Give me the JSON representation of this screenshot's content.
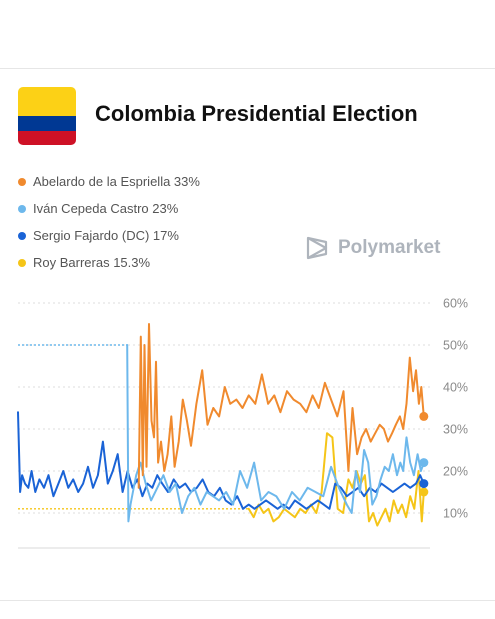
{
  "header": {
    "title": "Colombia Presidential Election",
    "brand": "Polymarket",
    "flag_colors": [
      "#FCD116",
      "#003893",
      "#CE1126"
    ]
  },
  "legend": [
    {
      "label": "Abelardo de la Espriella 33%",
      "color": "#f08a2e"
    },
    {
      "label": "Iván Cepeda Castro 23%",
      "color": "#6db8ec"
    },
    {
      "label": "Sergio Fajardo (DC) 17%",
      "color": "#1a63d6"
    },
    {
      "label": "Roy Barreras 15.3%",
      "color": "#f5c518"
    }
  ],
  "chart_data": {
    "type": "line",
    "title": "",
    "xlabel": "",
    "ylabel": "",
    "ylim": [
      5,
      60
    ],
    "y_ticks": [
      10,
      20,
      30,
      40,
      50,
      60
    ],
    "y_tick_labels": [
      "10%",
      "20%",
      "30%",
      "40%",
      "50%",
      "60%"
    ],
    "x_range": [
      0,
      100
    ],
    "grid": true,
    "y_axis_side": "right",
    "series": [
      {
        "name": "Abelardo de la Espriella",
        "color": "#f08a2e",
        "x": [
          29.3,
          29.8,
          30.3,
          30.7,
          31.2,
          31.8,
          32.4,
          33.0,
          33.5,
          34.0,
          34.7,
          35.5,
          36.3,
          37.2,
          38.0,
          39.0,
          40.0,
          41.0,
          42.0,
          43.3,
          44.7,
          46.0,
          47.4,
          48.8,
          50.2,
          51.5,
          53.0,
          54.5,
          56.0,
          57.6,
          59.2,
          60.7,
          62.2,
          63.7,
          65.3,
          66.9,
          68.5,
          70.0,
          71.5,
          73.0,
          74.5,
          76.0,
          77.5,
          79.0,
          80.2,
          81.2,
          82.3,
          83.4,
          84.5,
          85.6,
          86.7,
          87.8,
          88.8,
          89.8,
          90.8,
          91.7,
          92.7,
          93.5,
          94.3,
          95.1,
          95.9,
          96.6,
          97.3,
          97.9,
          98.5
        ],
        "values": [
          16,
          52,
          19,
          50,
          21,
          55,
          32,
          28,
          46,
          22,
          27,
          20,
          24,
          33,
          21,
          27,
          37,
          32,
          26,
          36,
          44,
          31,
          35,
          33,
          40,
          36,
          37,
          35,
          38,
          36,
          43,
          36,
          38,
          34,
          39,
          37,
          36,
          34,
          38,
          35,
          41,
          37,
          33,
          39,
          20,
          35,
          24,
          28,
          30,
          27,
          29,
          31,
          30,
          27,
          29,
          31,
          33,
          30,
          36,
          47,
          39,
          44,
          36,
          40,
          33
        ]
      },
      {
        "name": "Iván Cepeda Castro",
        "color": "#6db8ec",
        "x": [
          0.0,
          2.4,
          4.8,
          7.2,
          9.6,
          12.0,
          14.4,
          16.8,
          19.2,
          21.6,
          24.0,
          26.5,
          26.8,
          27.3,
          27.9,
          28.7,
          29.7,
          31.0,
          32.3,
          33.8,
          35.3,
          36.8,
          38.3,
          39.8,
          41.3,
          42.8,
          44.3,
          45.8,
          47.3,
          48.8,
          50.5,
          52.2,
          53.9,
          55.6,
          57.3,
          59.0,
          60.8,
          62.7,
          64.6,
          66.5,
          68.4,
          70.3,
          72.2,
          74.1,
          76.0,
          77.9,
          79.8,
          81.0,
          82.0,
          83.0,
          84.0,
          85.0,
          86.0,
          87.0,
          88.0,
          89.0,
          90.0,
          91.0,
          92.0,
          92.8,
          93.5,
          94.3,
          95.2,
          96.1,
          97.0,
          97.8,
          98.5
        ],
        "values": [
          50,
          50,
          50,
          50,
          50,
          50,
          50,
          50,
          50,
          50,
          50,
          50,
          8,
          12,
          15,
          19,
          22,
          17,
          13,
          16,
          19,
          15,
          17,
          10,
          14,
          16,
          12,
          15,
          14,
          13,
          15,
          12,
          20,
          16,
          22,
          13,
          15,
          14,
          11,
          15,
          13,
          16,
          15,
          14,
          21,
          16,
          12,
          10,
          20,
          15,
          25,
          22,
          12,
          14,
          18,
          21,
          20,
          24,
          19,
          22,
          20,
          28,
          22,
          19,
          24,
          20,
          22
        ]
      },
      {
        "name": "Sergio Fajardo (DC)",
        "color": "#1a63d6",
        "x": [
          0.0,
          0.5,
          1.0,
          1.7,
          2.5,
          3.3,
          4.2,
          5.2,
          6.3,
          7.4,
          8.6,
          9.8,
          11.0,
          12.2,
          13.4,
          14.6,
          15.8,
          17.0,
          18.2,
          19.4,
          20.6,
          21.8,
          23.0,
          24.2,
          25.4,
          26.6,
          27.8,
          29.0,
          30.2,
          31.4,
          32.6,
          33.8,
          35.0,
          36.4,
          37.8,
          39.2,
          40.6,
          42.0,
          43.4,
          44.8,
          46.2,
          47.6,
          49.0,
          50.4,
          51.8,
          53.2,
          54.6,
          56.0,
          57.4,
          58.8,
          60.2,
          61.6,
          63.0,
          64.4,
          65.8,
          67.2,
          68.6,
          70.0,
          71.4,
          72.8,
          74.2,
          75.6,
          77.0,
          78.4,
          79.8,
          81.2,
          82.6,
          84.0,
          85.4,
          86.8,
          88.2,
          89.6,
          91.0,
          92.4,
          93.8,
          95.2,
          96.6,
          97.6,
          98.5
        ],
        "values": [
          34,
          15,
          19,
          17,
          16,
          20,
          15,
          18,
          16,
          19,
          14,
          17,
          20,
          16,
          18,
          15,
          17,
          21,
          16,
          19,
          27,
          17,
          20,
          24,
          15,
          20,
          16,
          18,
          14,
          17,
          16,
          19,
          17,
          15,
          18,
          16,
          17,
          15,
          16,
          18,
          15,
          14,
          16,
          13,
          12,
          14,
          11,
          12,
          11,
          12,
          13,
          12,
          11,
          12,
          11,
          13,
          12,
          11,
          12,
          13,
          12,
          11,
          17,
          16,
          14,
          15,
          16,
          14,
          16,
          15,
          17,
          16,
          15,
          16,
          17,
          16,
          17,
          19,
          17
        ]
      },
      {
        "name": "Roy Barreras",
        "color": "#f5c518",
        "x": [
          0.0,
          5.0,
          10.0,
          15.0,
          20.0,
          25.0,
          30.0,
          35.0,
          40.0,
          45.0,
          50.0,
          55.0,
          56.0,
          57.2,
          58.4,
          59.6,
          60.8,
          62.0,
          63.3,
          64.6,
          65.9,
          67.2,
          68.5,
          69.8,
          71.1,
          72.4,
          73.7,
          75.0,
          76.3,
          77.6,
          78.9,
          80.2,
          81.2,
          82.2,
          83.2,
          84.2,
          85.2,
          86.2,
          87.2,
          88.2,
          89.2,
          90.2,
          91.2,
          92.2,
          93.2,
          94.2,
          95.2,
          96.2,
          97.2,
          98.0,
          98.5
        ],
        "values": [
          11,
          11,
          11,
          11,
          11,
          11,
          11,
          11,
          11,
          11,
          11,
          11,
          11,
          9,
          12,
          10,
          11,
          8,
          9,
          11,
          10,
          9,
          11,
          10,
          12,
          10,
          15,
          29,
          28,
          11,
          10,
          18,
          16,
          20,
          17,
          19,
          8,
          10,
          7,
          9,
          11,
          8,
          13,
          10,
          12,
          9,
          14,
          11,
          20,
          8,
          15
        ]
      }
    ]
  }
}
